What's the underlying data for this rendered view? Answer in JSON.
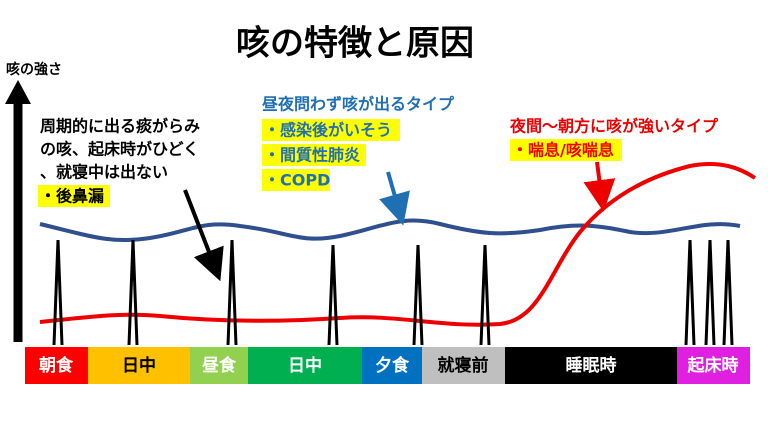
{
  "title": "咳の特徴と原因",
  "y_axis_label": "咳の強さ",
  "annotations": {
    "periodic": {
      "lines": [
        "周期的に出る痰がらみ",
        "の咳、起床時がひどく",
        "、就寝中は出ない"
      ],
      "items": [
        "・後鼻漏"
      ]
    },
    "all_day": {
      "heading": "昼夜問わず咳が出るタイプ",
      "items": [
        "・感染後がいそう",
        "・間質性肺炎",
        "・COPD"
      ]
    },
    "night": {
      "heading": "夜間〜朝方に咳が強いタイプ",
      "items": [
        "・喘息/咳喘息"
      ]
    }
  },
  "timeline": [
    "朝食",
    "日中",
    "昼食",
    "日中",
    "夕食",
    "就寝前",
    "睡眠時",
    "起床時"
  ]
}
